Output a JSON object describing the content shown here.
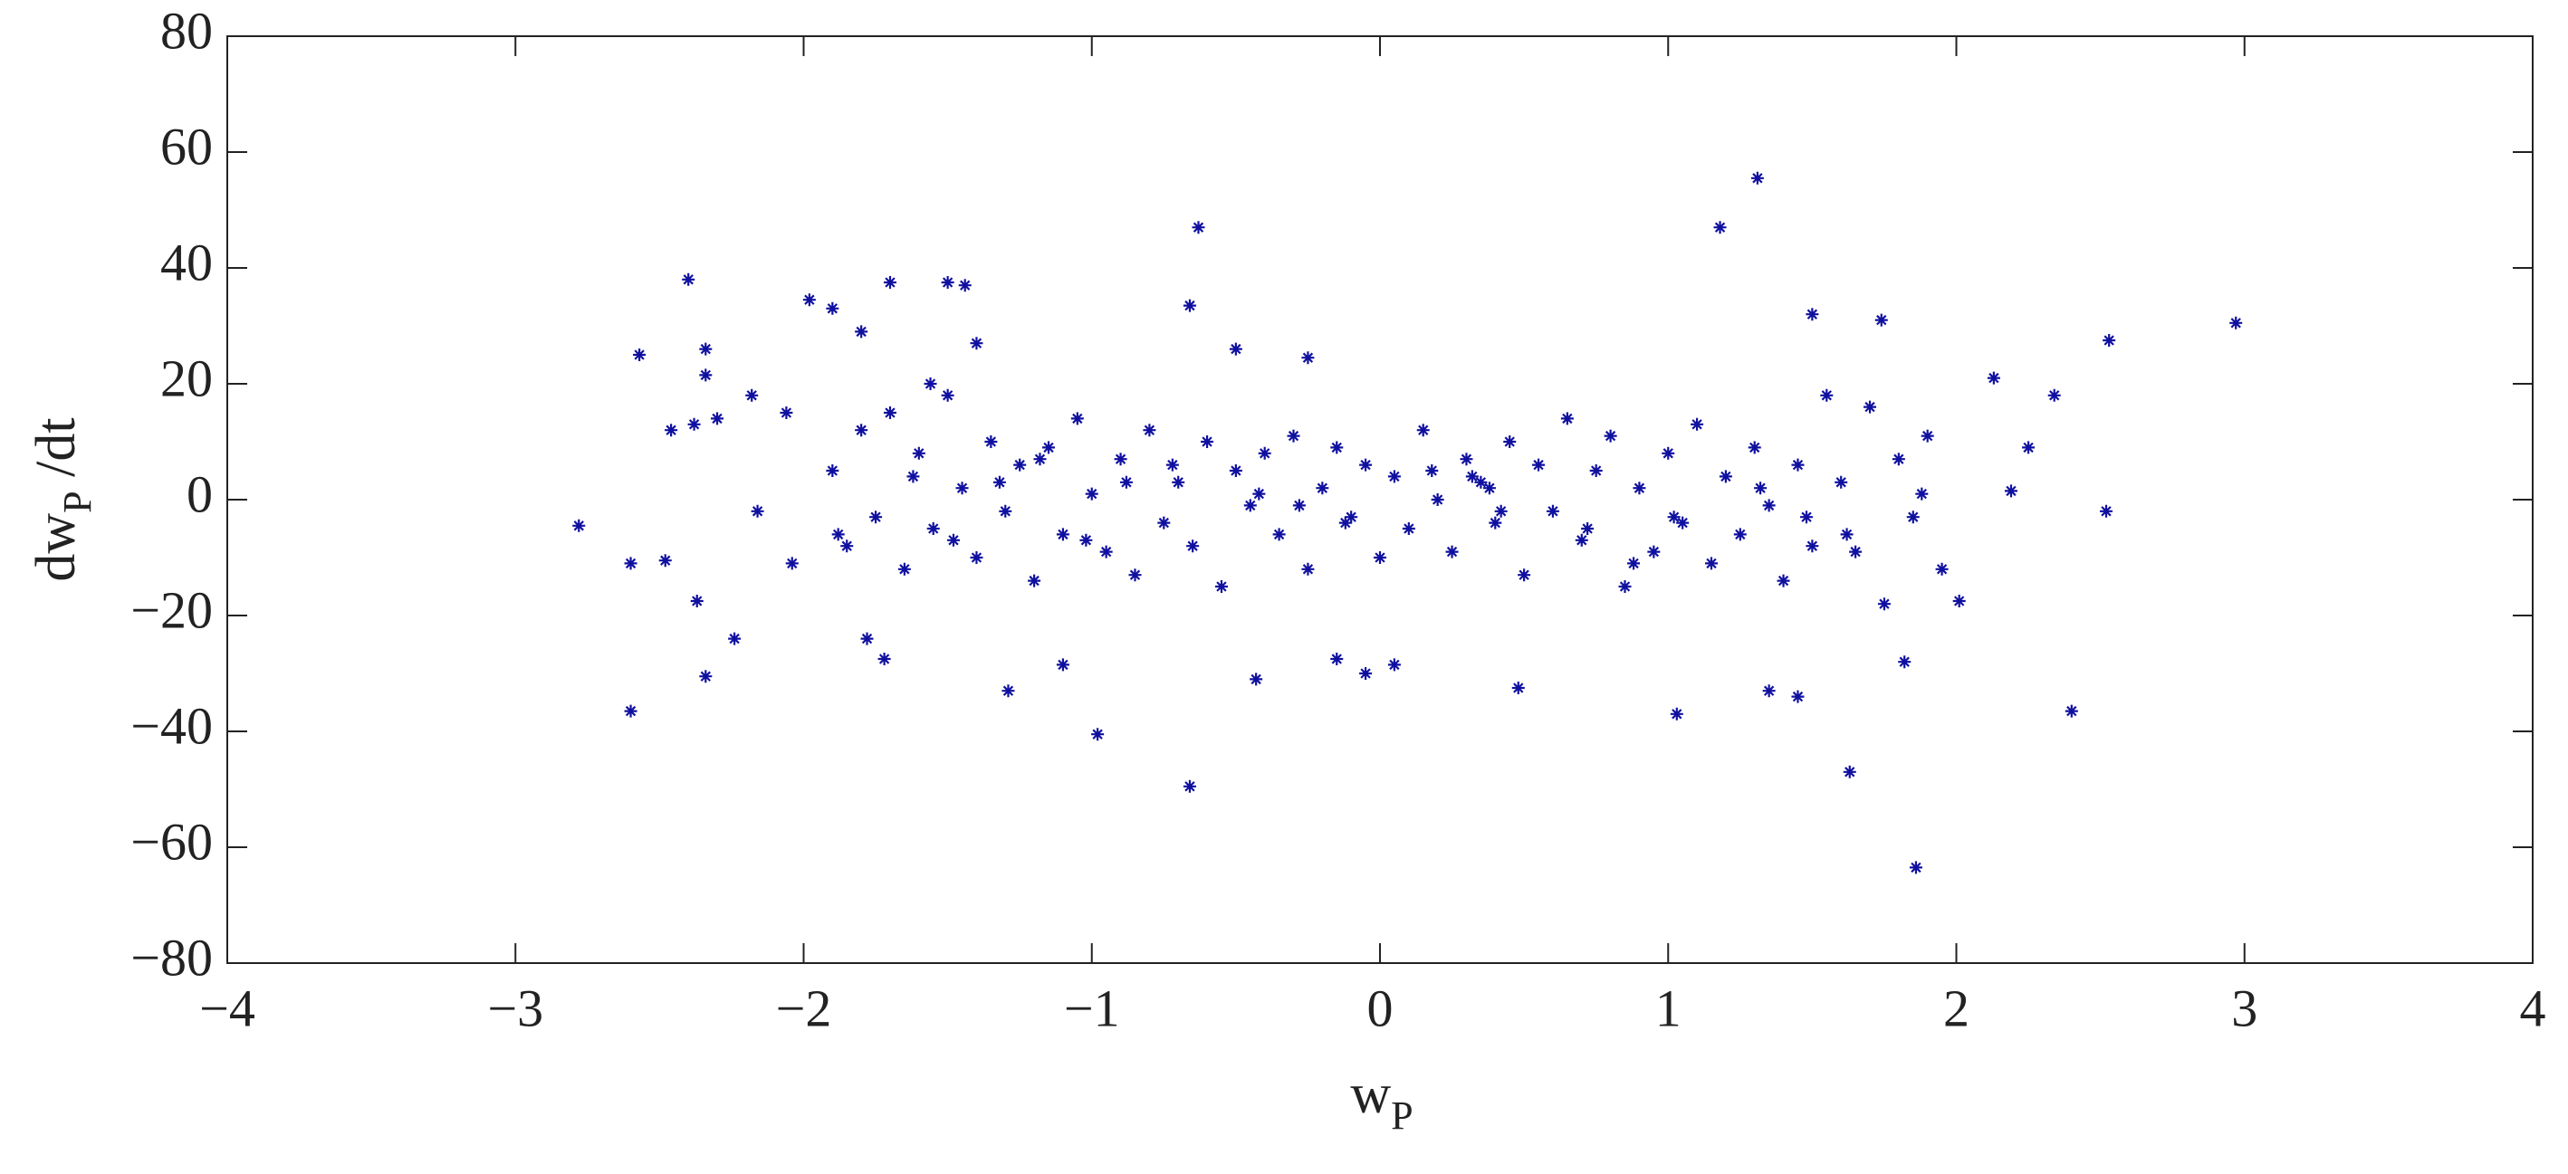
{
  "chart_data": {
    "type": "scatter",
    "xlabel": [
      "w",
      "P"
    ],
    "ylabel": [
      "dw",
      "P",
      " /dt"
    ],
    "color": "#1010a0",
    "marker": "asterisk",
    "box": true,
    "xlim": [
      -4,
      4
    ],
    "xticks": [
      {
        "value": -4,
        "label": "−4"
      },
      {
        "value": -3,
        "label": "−3"
      },
      {
        "value": -2,
        "label": "−2"
      },
      {
        "value": -1,
        "label": "−1"
      },
      0,
      1,
      2,
      3,
      4
    ],
    "ylim": [
      -80,
      80
    ],
    "yticks": [
      {
        "value": -80,
        "label": "−80"
      },
      {
        "value": -60,
        "label": "−60"
      },
      {
        "value": -40,
        "label": "−40"
      },
      {
        "value": -20,
        "label": "−20"
      },
      0,
      20,
      40,
      60,
      80
    ],
    "x": [
      -2.78,
      -2.6,
      -2.6,
      -2.57,
      -2.48,
      -2.46,
      -2.4,
      -2.38,
      -2.37,
      -2.34,
      -2.34,
      -2.34,
      -2.3,
      -2.24,
      -2.18,
      -2.16,
      -2.06,
      -2.04,
      -1.98,
      -1.9,
      -1.8,
      -1.7,
      -1.5,
      -1.44,
      -0.98,
      -0.66,
      -0.63,
      -0.66,
      -0.5,
      -0.43,
      -0.25,
      1.18,
      1.31,
      1.5,
      1.74,
      1.86,
      1.63,
      2.13,
      2.19,
      2.25,
      2.34,
      2.4,
      2.52,
      2.53,
      2.97,
      1.03,
      1.45,
      1.35,
      2.01,
      1.82,
      0.48,
      -1.29,
      -1.1,
      -0.15,
      -0.05,
      0.05,
      -1.78,
      -1.72,
      -1.56,
      -1.4,
      -1.9,
      -1.85,
      -1.8,
      -1.75,
      -1.7,
      -1.65,
      -1.6,
      -1.55,
      -1.5,
      -1.45,
      -1.4,
      -1.35,
      -1.3,
      -1.25,
      -1.2,
      -1.15,
      -1.1,
      -1.05,
      -1,
      -0.95,
      -0.9,
      -0.85,
      -0.8,
      -0.75,
      -0.7,
      -0.65,
      -0.6,
      -0.55,
      -0.5,
      -0.45,
      -0.4,
      -0.35,
      -0.3,
      -0.25,
      -0.2,
      -0.15,
      -0.1,
      -0.05,
      0,
      0.05,
      0.1,
      0.15,
      0.2,
      0.25,
      0.3,
      0.35,
      0.4,
      0.45,
      0.5,
      0.55,
      0.6,
      0.65,
      0.7,
      0.75,
      0.8,
      0.85,
      0.9,
      0.95,
      1,
      1.05,
      1.1,
      1.15,
      1.2,
      1.25,
      1.3,
      1.35,
      1.4,
      1.45,
      1.5,
      1.55,
      1.6,
      1.65,
      1.7,
      1.75,
      1.8,
      1.85,
      1.9,
      1.95,
      -1.88,
      -1.62,
      -1.32,
      -1.02,
      -0.72,
      -0.42,
      -0.12,
      0.18,
      0.38,
      0.42,
      0.72,
      1.02,
      1.32,
      1.62,
      -1.48,
      -0.88,
      -0.28,
      0.32,
      0.88,
      1.48,
      1.88,
      -1.18
    ],
    "values": [
      -4.5,
      -36.5,
      -11,
      25,
      -10.5,
      12,
      38,
      13,
      -17.5,
      26,
      21.5,
      -30.5,
      14,
      -24,
      18,
      -2,
      15,
      -11,
      34.5,
      33,
      29,
      37.5,
      37.5,
      37,
      -40.5,
      -49.5,
      47,
      33.5,
      26,
      -31,
      24.5,
      47,
      55.5,
      32,
      31,
      -63.5,
      -47,
      21,
      1.5,
      9,
      18,
      -36.5,
      -2,
      27.5,
      30.5,
      -37,
      -34,
      -33,
      -17.5,
      -28,
      -32.5,
      -33,
      -28.5,
      -27.5,
      -30,
      -28.5,
      -24,
      -27.5,
      20,
      27,
      5,
      -8,
      12,
      -3,
      15,
      -12,
      8,
      -5,
      18,
      2,
      -10,
      10,
      -2,
      6,
      -14,
      9,
      -6,
      14,
      1,
      -9,
      7,
      -13,
      12,
      -4,
      3,
      -8,
      10,
      -15,
      5,
      -1,
      8,
      -6,
      11,
      -12,
      2,
      9,
      -3,
      6,
      -10,
      4,
      -5,
      12,
      0,
      -9,
      7,
      3,
      -4,
      10,
      -13,
      6,
      -2,
      14,
      -7,
      5,
      11,
      -15,
      2,
      -9,
      8,
      -4,
      13,
      -11,
      4,
      -6,
      9,
      -1,
      -14,
      6,
      -8,
      18,
      3,
      -9,
      16,
      -18,
      7,
      -3,
      11,
      -12,
      -6,
      4,
      3,
      -7,
      6,
      1,
      -4,
      5,
      2,
      -2,
      -5,
      -3,
      2,
      -6,
      -7,
      3,
      -1,
      4,
      -11,
      -3,
      1,
      7
    ]
  }
}
